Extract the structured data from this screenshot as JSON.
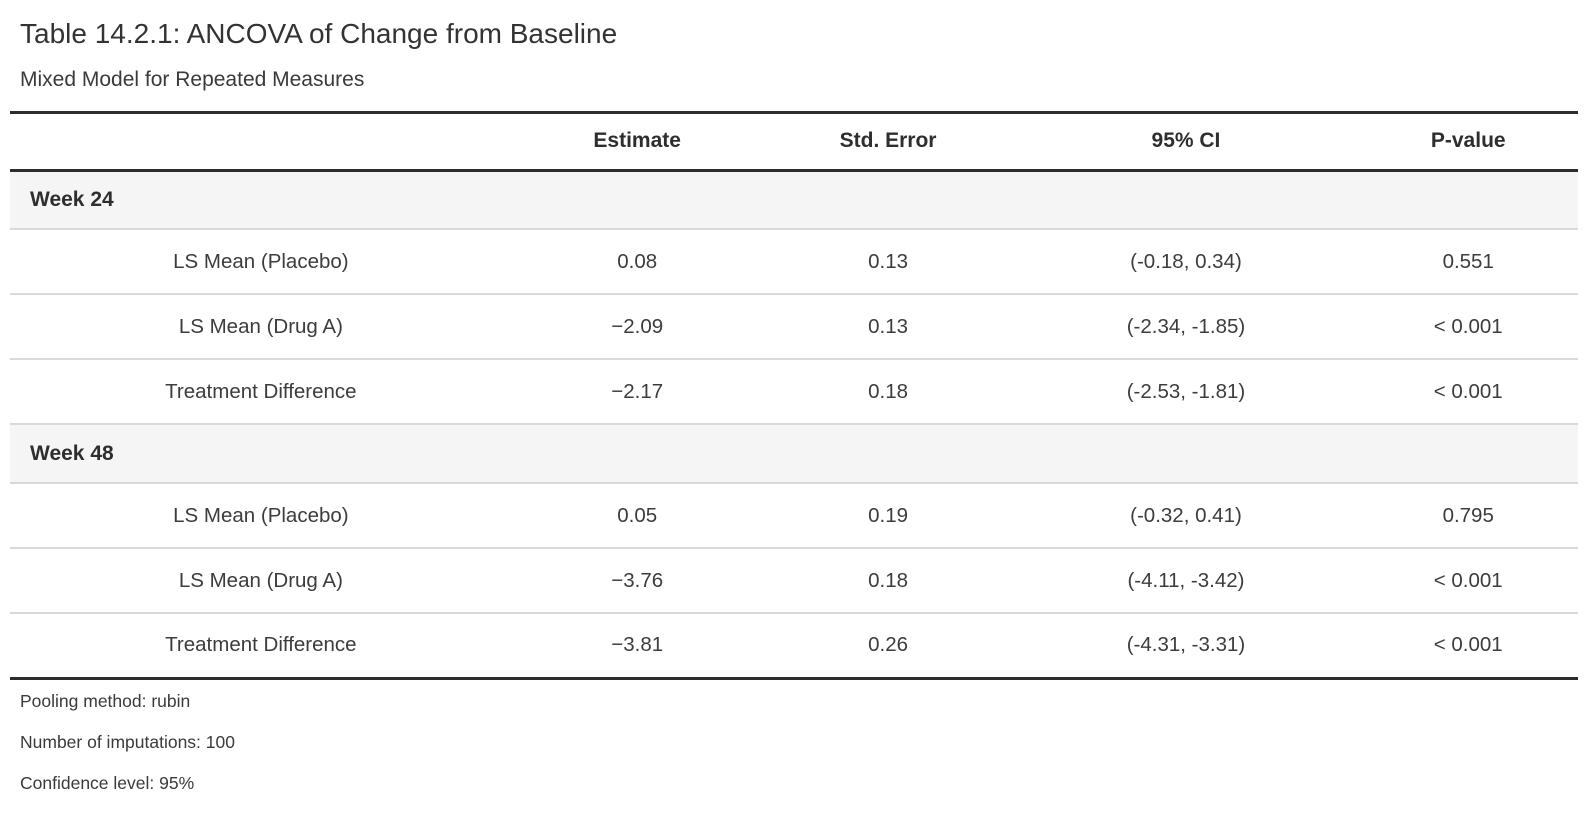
{
  "title": "Table 14.2.1: ANCOVA of Change from Baseline",
  "subtitle": "Mixed Model for Repeated Measures",
  "table": {
    "columns": [
      "",
      "Estimate",
      "Std. Error",
      "95% CI",
      "P-value"
    ],
    "groups": [
      {
        "label": "Week 24",
        "rows": [
          {
            "label": "LS Mean (Placebo)",
            "estimate": "0.08",
            "std_error": "0.13",
            "ci": "(-0.18, 0.34)",
            "p_value": "0.551"
          },
          {
            "label": "LS Mean (Drug A)",
            "estimate": "−2.09",
            "std_error": "0.13",
            "ci": "(-2.34, -1.85)",
            "p_value": "< 0.001"
          },
          {
            "label": "Treatment Difference",
            "estimate": "−2.17",
            "std_error": "0.18",
            "ci": "(-2.53, -1.81)",
            "p_value": "< 0.001"
          }
        ]
      },
      {
        "label": "Week 48",
        "rows": [
          {
            "label": "LS Mean (Placebo)",
            "estimate": "0.05",
            "std_error": "0.19",
            "ci": "(-0.32, 0.41)",
            "p_value": "0.795"
          },
          {
            "label": "LS Mean (Drug A)",
            "estimate": "−3.76",
            "std_error": "0.18",
            "ci": "(-4.11, -3.42)",
            "p_value": "< 0.001"
          },
          {
            "label": "Treatment Difference",
            "estimate": "−3.81",
            "std_error": "0.26",
            "ci": "(-4.31, -3.31)",
            "p_value": "< 0.001"
          }
        ]
      }
    ]
  },
  "footnotes": [
    "Pooling method: rubin",
    "Number of imputations: 100",
    "Confidence level: 95%"
  ]
}
